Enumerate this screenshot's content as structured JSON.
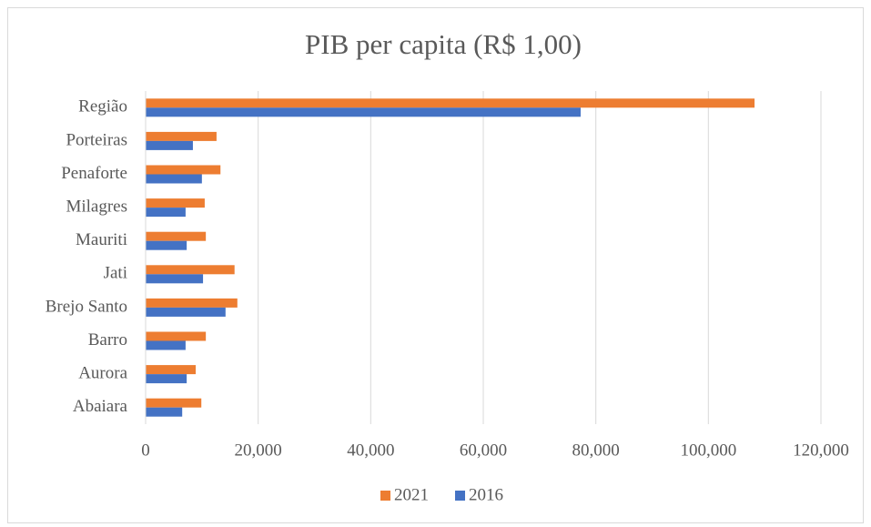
{
  "chart_data": {
    "type": "bar",
    "orientation": "horizontal",
    "title": "PIB per capita (R$ 1,00)",
    "categories": [
      "Região",
      "Porteiras",
      "Penaforte",
      "Milagres",
      "Mauriti",
      "Jati",
      "Brejo Santo",
      "Barro",
      "Aurora",
      "Abaiara"
    ],
    "series": [
      {
        "name": "2021",
        "color": "#ed7d31",
        "values": [
          108200,
          12600,
          13300,
          10500,
          10700,
          15800,
          16300,
          10700,
          8900,
          9900
        ]
      },
      {
        "name": "2016",
        "color": "#4472c4",
        "values": [
          77300,
          8400,
          10000,
          7100,
          7300,
          10200,
          14200,
          7100,
          7300,
          6500
        ]
      }
    ],
    "xlim": [
      0,
      120000
    ],
    "xticks": [
      0,
      {
        "value": 20000,
        "label": "20,000"
      },
      {
        "value": 40000,
        "label": "40,000"
      },
      {
        "value": 60000,
        "label": "60,000"
      },
      {
        "value": 80000,
        "label": "80,000"
      },
      {
        "value": 100000,
        "label": "100,000"
      },
      {
        "value": 120000,
        "label": "120,000"
      }
    ],
    "grid": true,
    "legend": "bottom"
  }
}
